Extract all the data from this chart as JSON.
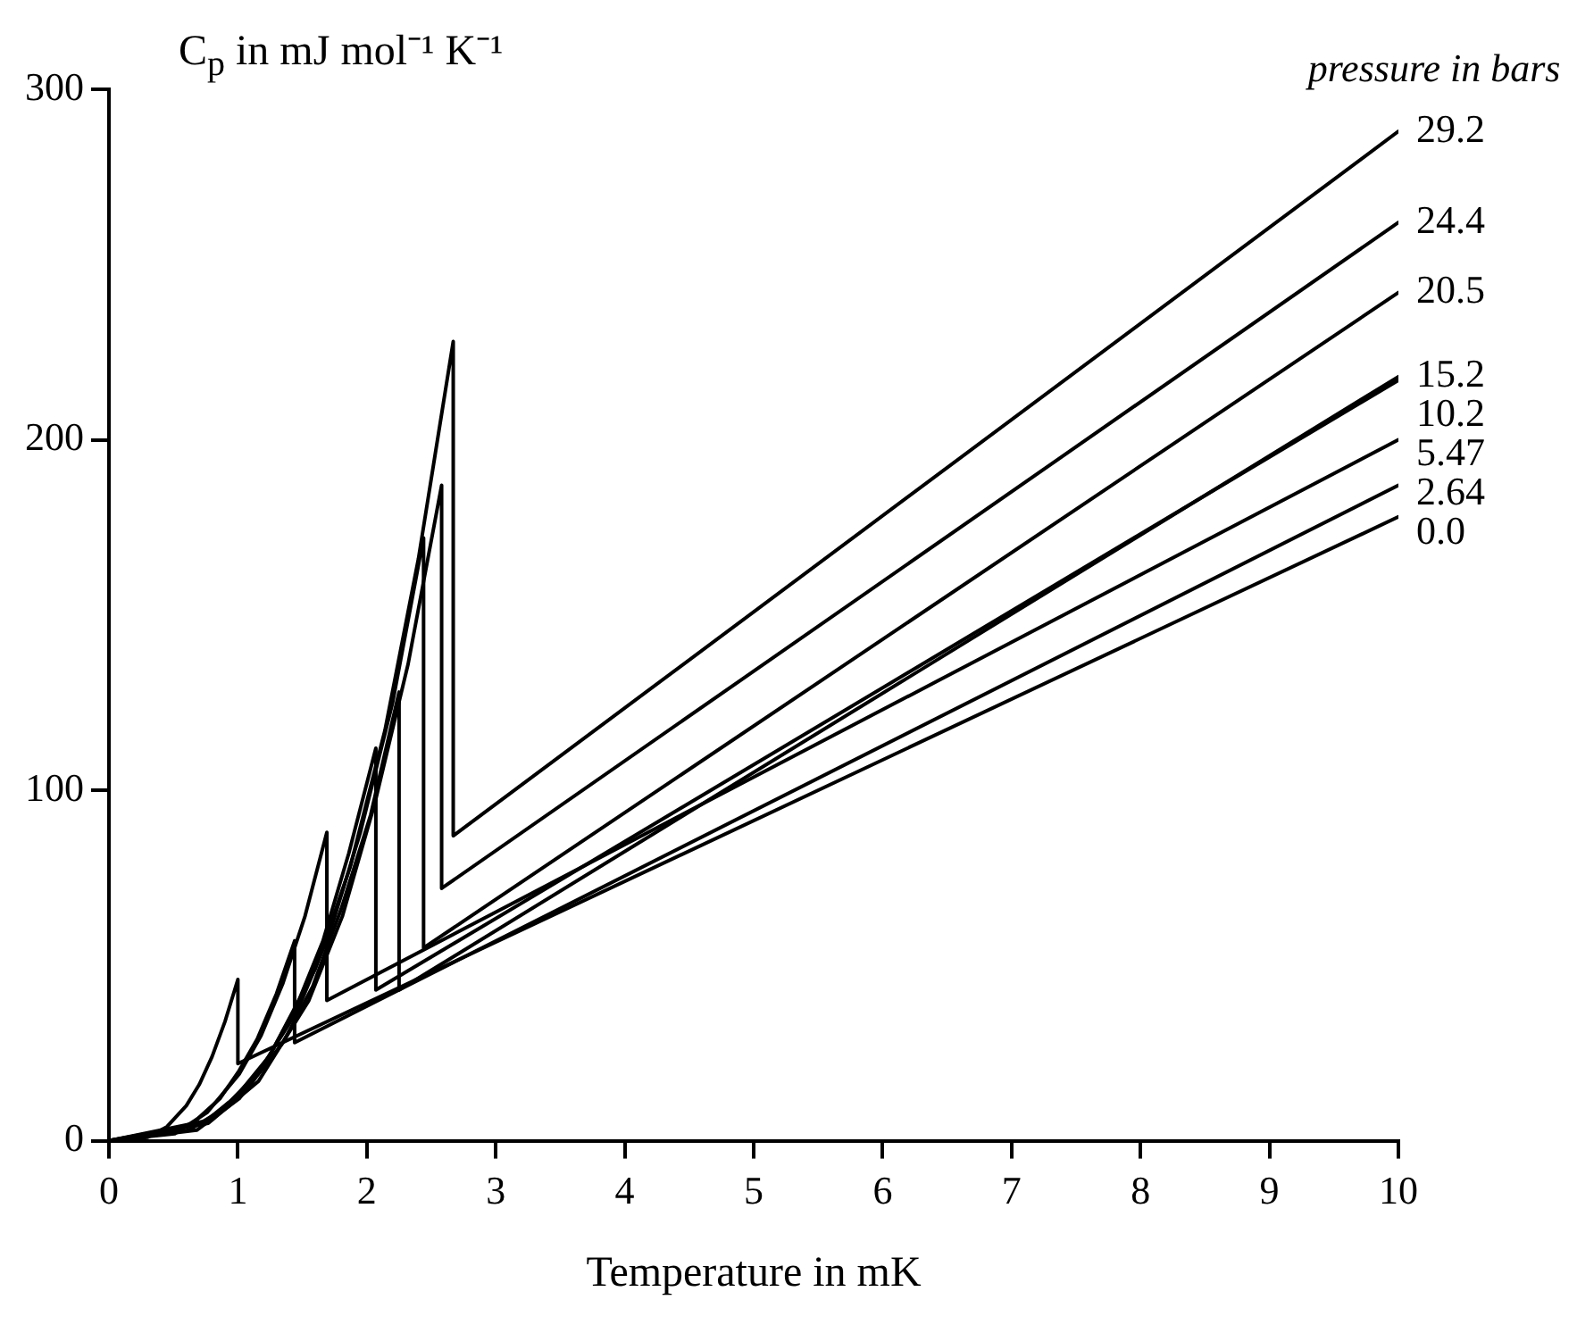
{
  "chart_data": {
    "type": "line",
    "xlabel": "Temperature in mK",
    "ylabel": "C$_{p}$ in  mJ mol⁻¹ K⁻¹",
    "legend_title": "pressure in bars",
    "xlim": [
      0,
      10
    ],
    "xticks": [
      0,
      1,
      2,
      3,
      4,
      5,
      6,
      7,
      8,
      9,
      10
    ],
    "ylim": [
      0,
      300
    ],
    "yticks": [
      0,
      100,
      200,
      300
    ],
    "legend": false,
    "marker": "none",
    "line_style": "solid",
    "series": [
      {
        "name": "29.2",
        "color": "#000000",
        "x": [
          0,
          0.8,
          1.2,
          1.6,
          1.87,
          2.14,
          2.4,
          2.67,
          2.67,
          10
        ],
        "values": [
          0,
          6,
          21,
          49,
          78,
          117,
          166,
          228,
          87,
          288
        ]
      },
      {
        "name": "24.4",
        "color": "#000000",
        "x": [
          0,
          0.77,
          1.16,
          1.55,
          1.81,
          2.06,
          2.32,
          2.58,
          2.58,
          10
        ],
        "values": [
          0,
          5,
          17,
          40,
          64,
          96,
          136,
          187,
          72,
          262
        ]
      },
      {
        "name": "20.5",
        "color": "#000000",
        "x": [
          0,
          0.73,
          1.1,
          1.46,
          1.71,
          1.95,
          2.2,
          2.44,
          2.44,
          10
        ],
        "values": [
          0,
          5,
          16,
          37,
          59,
          88,
          125,
          172,
          55,
          242
        ]
      },
      {
        "name": "15.2",
        "color": "#000000",
        "x": [
          0,
          0.68,
          1.01,
          1.35,
          1.58,
          1.8,
          2.03,
          2.25,
          2.25,
          10
        ],
        "values": [
          0,
          3,
          12,
          28,
          44,
          66,
          93,
          128,
          43,
          218
        ]
      },
      {
        "name": "10.2",
        "color": "#000000",
        "x": [
          0,
          0.62,
          0.93,
          1.24,
          1.45,
          1.66,
          1.86,
          2.07,
          2.07,
          10
        ],
        "values": [
          0,
          3,
          10,
          24,
          38,
          57,
          82,
          112,
          43,
          217
        ]
      },
      {
        "name": "5.47",
        "color": "#000000",
        "x": [
          0,
          0.51,
          0.76,
          1.01,
          1.18,
          1.35,
          1.52,
          1.69,
          1.69,
          10
        ],
        "values": [
          0,
          2,
          8,
          19,
          30,
          45,
          64,
          88,
          40,
          200
        ]
      },
      {
        "name": "2.64",
        "color": "#000000",
        "x": [
          0,
          0.43,
          0.65,
          0.86,
          1.01,
          1.15,
          1.3,
          1.44,
          1.44,
          10
        ],
        "values": [
          0,
          2,
          5,
          12,
          20,
          29,
          42,
          57,
          28,
          187
        ]
      },
      {
        "name": "0.0",
        "color": "#000000",
        "x": [
          0,
          0.3,
          0.45,
          0.6,
          0.7,
          0.8,
          0.9,
          1.0,
          1.0,
          10
        ],
        "values": [
          0,
          1,
          4,
          10,
          16,
          24,
          34,
          46,
          22,
          178
        ]
      }
    ]
  }
}
